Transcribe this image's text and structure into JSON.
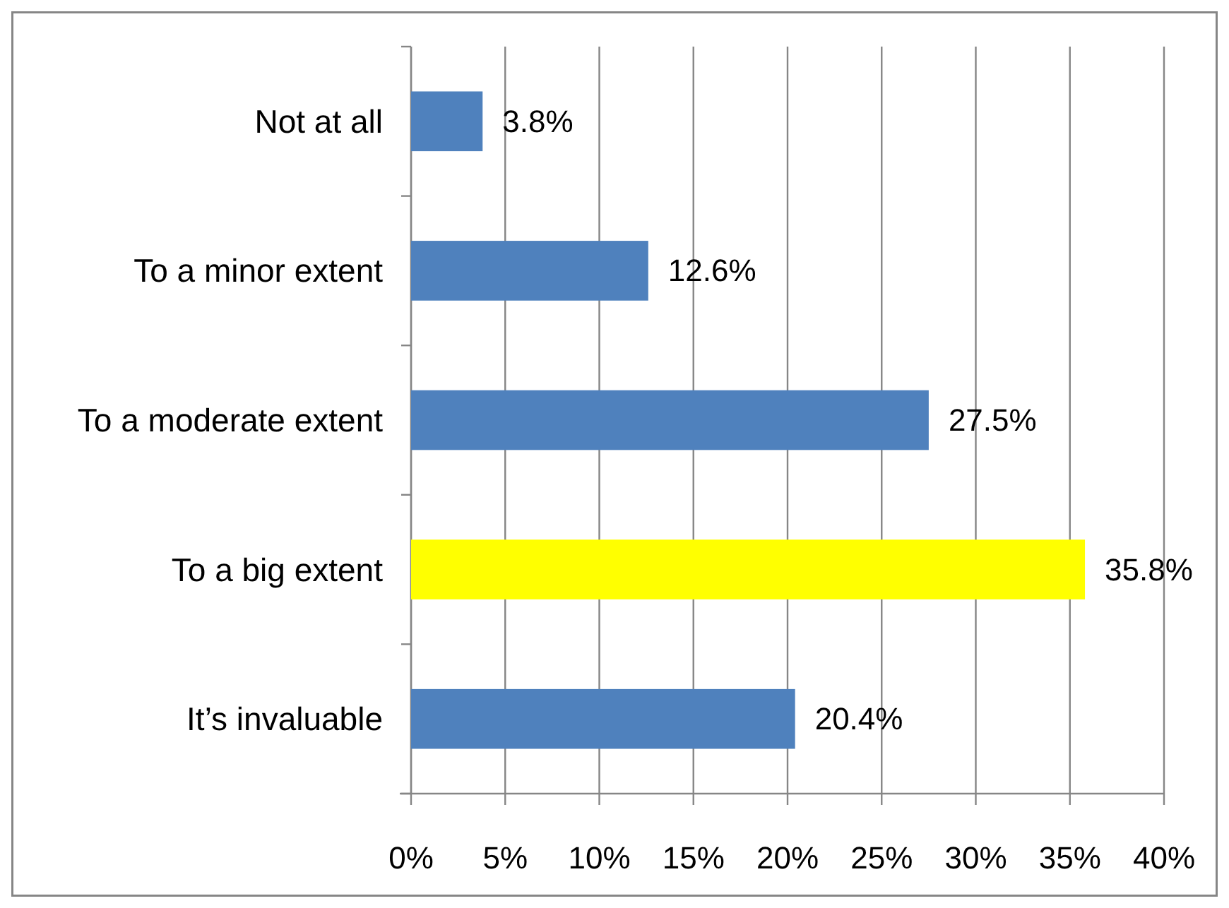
{
  "chart_data": {
    "type": "bar",
    "orientation": "horizontal",
    "categories": [
      "Not at all",
      "To a minor extent",
      "To a moderate extent",
      "To a big extent",
      "It’s invaluable"
    ],
    "values": [
      3.8,
      12.6,
      27.5,
      35.8,
      20.4
    ],
    "colors": [
      "#4f81bd",
      "#4f81bd",
      "#4f81bd",
      "#ffff00",
      "#4f81bd"
    ],
    "value_labels": [
      "3.8%",
      "12.6%",
      "27.5%",
      "35.8%",
      "20.4%"
    ],
    "xlim": [
      0,
      40
    ],
    "xticks": [
      {
        "value": 0,
        "label": "0%"
      },
      {
        "value": 5,
        "label": "5%"
      },
      {
        "value": 10,
        "label": "10%"
      },
      {
        "value": 15,
        "label": "15%"
      },
      {
        "value": 20,
        "label": "20%"
      },
      {
        "value": 25,
        "label": "25%"
      },
      {
        "value": 30,
        "label": "30%"
      },
      {
        "value": 35,
        "label": "35%"
      },
      {
        "value": 40,
        "label": "40%"
      }
    ],
    "grid": "x"
  }
}
